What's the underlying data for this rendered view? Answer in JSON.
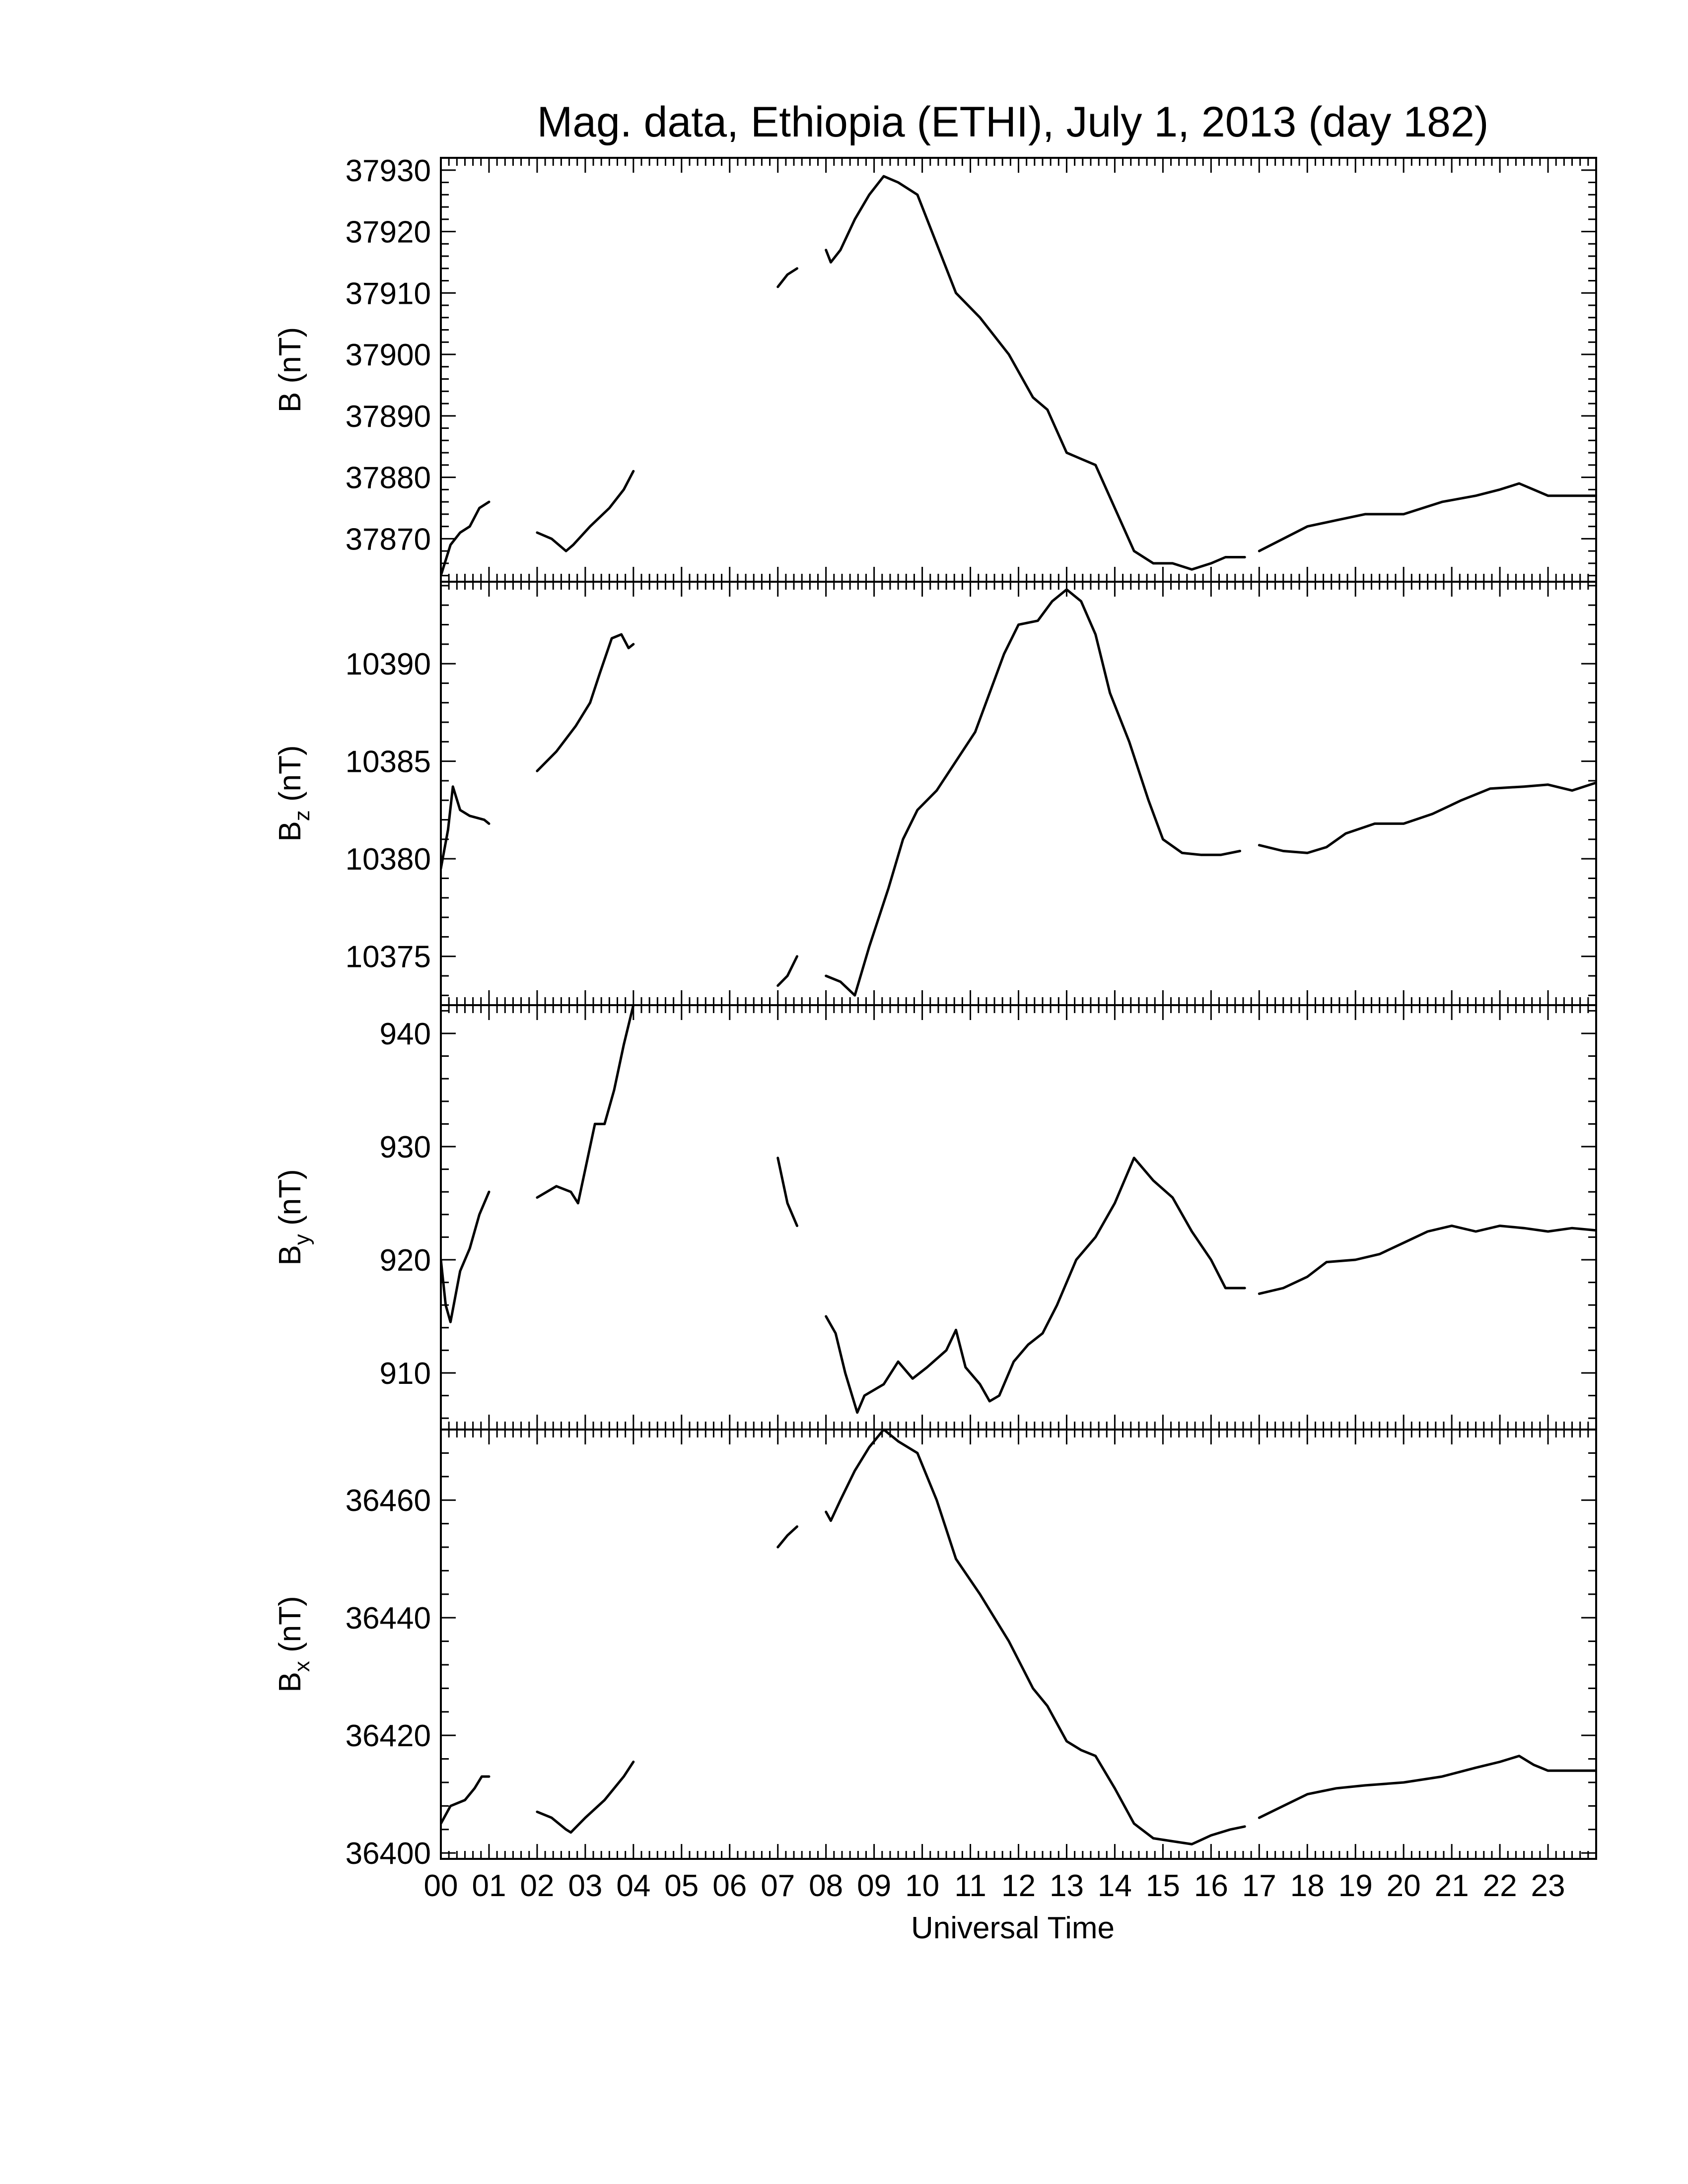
{
  "chart_data": {
    "type": "line",
    "title": "Mag. data, Ethiopia (ETHI), July 1, 2013 (day 182)",
    "xlabel": "Universal Time",
    "x_ticks": [
      "00",
      "01",
      "02",
      "03",
      "04",
      "05",
      "06",
      "07",
      "08",
      "09",
      "10",
      "11",
      "12",
      "13",
      "14",
      "15",
      "16",
      "17",
      "18",
      "19",
      "20",
      "21",
      "22",
      "23"
    ],
    "xlim": [
      0,
      24
    ],
    "panels": [
      {
        "id": "B",
        "ylabel_main": "B",
        "ylabel_sub": "",
        "ylabel_unit": " (nT)",
        "ylim": [
          37863,
          37932
        ],
        "yticks": [
          37870,
          37880,
          37890,
          37900,
          37910,
          37920,
          37930
        ],
        "segments": [
          [
            [
              0.0,
              37864
            ],
            [
              0.2,
              37869
            ],
            [
              0.4,
              37871
            ],
            [
              0.6,
              37872
            ],
            [
              0.8,
              37875
            ],
            [
              1.0,
              37876
            ]
          ],
          [
            [
              2.0,
              37871
            ],
            [
              2.3,
              37870
            ],
            [
              2.6,
              37868
            ],
            [
              2.75,
              37869
            ],
            [
              3.1,
              37872
            ],
            [
              3.5,
              37875
            ],
            [
              3.8,
              37878
            ],
            [
              4.0,
              37881
            ]
          ],
          [
            [
              7.0,
              37911
            ],
            [
              7.2,
              37913
            ],
            [
              7.4,
              37914
            ]
          ],
          [
            [
              8.0,
              37917
            ],
            [
              8.1,
              37915
            ],
            [
              8.3,
              37917
            ],
            [
              8.6,
              37922
            ],
            [
              8.9,
              37926
            ],
            [
              9.2,
              37929
            ],
            [
              9.5,
              37928
            ],
            [
              9.9,
              37926
            ],
            [
              10.3,
              37918
            ],
            [
              10.7,
              37910
            ],
            [
              11.2,
              37906
            ],
            [
              11.8,
              37900
            ],
            [
              12.3,
              37893
            ],
            [
              12.6,
              37891
            ],
            [
              13.0,
              37884
            ],
            [
              13.3,
              37883
            ],
            [
              13.6,
              37882
            ],
            [
              14.0,
              37875
            ],
            [
              14.4,
              37868
            ],
            [
              14.8,
              37866
            ],
            [
              15.2,
              37866
            ],
            [
              15.6,
              37865
            ],
            [
              16.0,
              37866
            ],
            [
              16.3,
              37867
            ],
            [
              16.7,
              37867
            ]
          ],
          [
            [
              17.0,
              37868
            ],
            [
              17.5,
              37870
            ],
            [
              18.0,
              37872
            ],
            [
              18.6,
              37873
            ],
            [
              19.2,
              37874
            ],
            [
              20.0,
              37874
            ],
            [
              20.8,
              37876
            ],
            [
              21.5,
              37877
            ],
            [
              22.0,
              37878
            ],
            [
              22.4,
              37879
            ],
            [
              22.7,
              37878
            ],
            [
              23.0,
              37877
            ],
            [
              23.5,
              37877
            ],
            [
              24.0,
              37877
            ]
          ]
        ]
      },
      {
        "id": "Bz",
        "ylabel_main": "B",
        "ylabel_sub": "z",
        "ylabel_unit": " (nT)",
        "ylim": [
          10372.5,
          10394.2
        ],
        "yticks": [
          10375,
          10380,
          10385,
          10390
        ],
        "segments": [
          [
            [
              0.0,
              10379.5
            ],
            [
              0.15,
              10381.5
            ],
            [
              0.25,
              10383.7
            ],
            [
              0.4,
              10382.5
            ],
            [
              0.6,
              10382.2
            ],
            [
              0.9,
              10382.0
            ],
            [
              1.0,
              10381.8
            ]
          ],
          [
            [
              2.0,
              10384.5
            ],
            [
              2.4,
              10385.5
            ],
            [
              2.8,
              10386.8
            ],
            [
              3.1,
              10388.0
            ],
            [
              3.3,
              10389.5
            ],
            [
              3.55,
              10391.3
            ],
            [
              3.75,
              10391.5
            ],
            [
              3.9,
              10390.8
            ],
            [
              4.0,
              10391.0
            ]
          ],
          [
            [
              7.0,
              10373.5
            ],
            [
              7.2,
              10374.0
            ],
            [
              7.4,
              10375.0
            ]
          ],
          [
            [
              8.0,
              10374.0
            ],
            [
              8.3,
              10373.7
            ],
            [
              8.6,
              10373.0
            ],
            [
              8.9,
              10375.5
            ],
            [
              9.3,
              10378.5
            ],
            [
              9.6,
              10381.0
            ],
            [
              9.9,
              10382.5
            ],
            [
              10.3,
              10383.5
            ],
            [
              10.7,
              10385.0
            ],
            [
              11.1,
              10386.5
            ],
            [
              11.4,
              10388.5
            ],
            [
              11.7,
              10390.5
            ],
            [
              12.0,
              10392.0
            ],
            [
              12.4,
              10392.2
            ],
            [
              12.7,
              10393.2
            ],
            [
              13.0,
              10393.8
            ],
            [
              13.3,
              10393.2
            ],
            [
              13.6,
              10391.5
            ],
            [
              13.9,
              10388.5
            ],
            [
              14.3,
              10386.0
            ],
            [
              14.7,
              10383.0
            ],
            [
              15.0,
              10381.0
            ],
            [
              15.4,
              10380.3
            ],
            [
              15.8,
              10380.2
            ],
            [
              16.2,
              10380.2
            ],
            [
              16.6,
              10380.4
            ]
          ],
          [
            [
              17.0,
              10380.7
            ],
            [
              17.5,
              10380.4
            ],
            [
              18.0,
              10380.3
            ],
            [
              18.4,
              10380.6
            ],
            [
              18.8,
              10381.3
            ],
            [
              19.4,
              10381.8
            ],
            [
              20.0,
              10381.8
            ],
            [
              20.6,
              10382.3
            ],
            [
              21.2,
              10383.0
            ],
            [
              21.8,
              10383.6
            ],
            [
              22.5,
              10383.7
            ],
            [
              23.0,
              10383.8
            ],
            [
              23.5,
              10383.5
            ],
            [
              24.0,
              10383.9
            ]
          ]
        ]
      },
      {
        "id": "By",
        "ylabel_main": "B",
        "ylabel_sub": "y",
        "ylabel_unit": " (nT)",
        "ylim": [
          905,
          942.5
        ],
        "yticks": [
          910,
          920,
          930,
          940
        ],
        "segments": [
          [
            [
              0.0,
              920
            ],
            [
              0.1,
              916
            ],
            [
              0.2,
              914.5
            ],
            [
              0.4,
              919
            ],
            [
              0.6,
              921
            ],
            [
              0.8,
              924
            ],
            [
              1.0,
              926
            ]
          ],
          [
            [
              2.0,
              925.5
            ],
            [
              2.4,
              926.5
            ],
            [
              2.7,
              926.0
            ],
            [
              2.85,
              925.0
            ],
            [
              3.0,
              928
            ],
            [
              3.2,
              932
            ],
            [
              3.4,
              932
            ],
            [
              3.6,
              935
            ],
            [
              3.8,
              939
            ],
            [
              4.0,
              942.5
            ]
          ],
          [
            [
              7.0,
              929
            ],
            [
              7.2,
              925
            ],
            [
              7.4,
              923
            ]
          ],
          [
            [
              8.0,
              915
            ],
            [
              8.2,
              913.5
            ],
            [
              8.4,
              910.0
            ],
            [
              8.65,
              906.5
            ],
            [
              8.8,
              908.0
            ],
            [
              9.2,
              909.0
            ],
            [
              9.5,
              911.0
            ],
            [
              9.8,
              909.5
            ],
            [
              10.1,
              910.5
            ],
            [
              10.5,
              912.0
            ],
            [
              10.7,
              913.8
            ],
            [
              10.9,
              910.5
            ],
            [
              11.2,
              909.0
            ],
            [
              11.4,
              907.5
            ],
            [
              11.6,
              908.0
            ],
            [
              11.9,
              911.0
            ],
            [
              12.2,
              912.5
            ],
            [
              12.5,
              913.5
            ],
            [
              12.8,
              916.0
            ],
            [
              13.2,
              920.0
            ],
            [
              13.6,
              922.0
            ],
            [
              14.0,
              925.0
            ],
            [
              14.4,
              929.0
            ],
            [
              14.8,
              927.0
            ],
            [
              15.2,
              925.5
            ],
            [
              15.6,
              922.5
            ],
            [
              16.0,
              920.0
            ],
            [
              16.3,
              917.5
            ],
            [
              16.7,
              917.5
            ]
          ],
          [
            [
              17.0,
              917.0
            ],
            [
              17.5,
              917.5
            ],
            [
              18.0,
              918.5
            ],
            [
              18.4,
              919.8
            ],
            [
              19.0,
              920.0
            ],
            [
              19.5,
              920.5
            ],
            [
              20.0,
              921.5
            ],
            [
              20.5,
              922.5
            ],
            [
              21.0,
              923.0
            ],
            [
              21.5,
              922.5
            ],
            [
              22.0,
              923.0
            ],
            [
              22.5,
              922.8
            ],
            [
              23.0,
              922.5
            ],
            [
              23.5,
              922.8
            ],
            [
              24.0,
              922.6
            ]
          ]
        ]
      },
      {
        "id": "Bx",
        "ylabel_main": "B",
        "ylabel_sub": "x",
        "ylabel_unit": " (nT)",
        "ylim": [
          36399,
          36472
        ],
        "yticks": [
          36400,
          36420,
          36440,
          36460
        ],
        "segments": [
          [
            [
              0.0,
              36405
            ],
            [
              0.2,
              36408
            ],
            [
              0.5,
              36409
            ],
            [
              0.7,
              36411
            ],
            [
              0.85,
              36413
            ],
            [
              1.0,
              36413
            ]
          ],
          [
            [
              2.0,
              36407
            ],
            [
              2.3,
              36406
            ],
            [
              2.6,
              36404
            ],
            [
              2.7,
              36403.5
            ],
            [
              3.0,
              36406
            ],
            [
              3.4,
              36409
            ],
            [
              3.8,
              36413
            ],
            [
              4.0,
              36415.5
            ]
          ],
          [
            [
              7.0,
              36452
            ],
            [
              7.2,
              36454
            ],
            [
              7.4,
              36455.5
            ]
          ],
          [
            [
              8.0,
              36458
            ],
            [
              8.1,
              36456.5
            ],
            [
              8.3,
              36460
            ],
            [
              8.6,
              36465
            ],
            [
              8.9,
              36469
            ],
            [
              9.2,
              36472
            ],
            [
              9.5,
              36470
            ],
            [
              9.9,
              36468
            ],
            [
              10.3,
              36460
            ],
            [
              10.7,
              36450
            ],
            [
              11.2,
              36444
            ],
            [
              11.8,
              36436
            ],
            [
              12.3,
              36428
            ],
            [
              12.6,
              36425
            ],
            [
              13.0,
              36419
            ],
            [
              13.3,
              36417.5
            ],
            [
              13.6,
              36416.5
            ],
            [
              14.0,
              36411
            ],
            [
              14.4,
              36405
            ],
            [
              14.8,
              36402.5
            ],
            [
              15.2,
              36402
            ],
            [
              15.6,
              36401.5
            ],
            [
              16.0,
              36403
            ],
            [
              16.4,
              36404
            ],
            [
              16.7,
              36404.5
            ]
          ],
          [
            [
              17.0,
              36406
            ],
            [
              17.5,
              36408
            ],
            [
              18.0,
              36410
            ],
            [
              18.6,
              36411
            ],
            [
              19.2,
              36411.5
            ],
            [
              20.0,
              36412
            ],
            [
              20.8,
              36413
            ],
            [
              21.5,
              36414.5
            ],
            [
              22.0,
              36415.5
            ],
            [
              22.4,
              36416.5
            ],
            [
              22.7,
              36415
            ],
            [
              23.0,
              36414
            ],
            [
              23.5,
              36414
            ],
            [
              24.0,
              36414
            ]
          ]
        ]
      }
    ]
  }
}
